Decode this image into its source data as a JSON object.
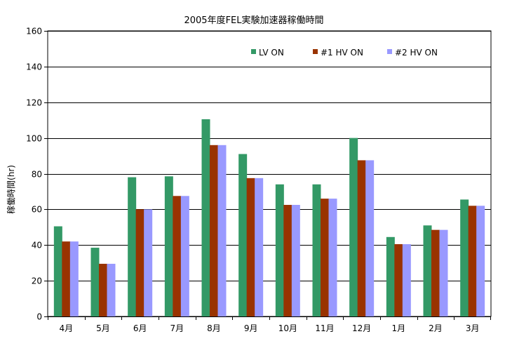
{
  "chart_data": {
    "type": "bar",
    "title": "2005年度FEL実験加速器稼働時間",
    "xlabel": "",
    "ylabel": "稼働時間(hr)",
    "ylim": [
      0,
      160
    ],
    "yticks": [
      0,
      20,
      40,
      60,
      80,
      100,
      120,
      140,
      160
    ],
    "grid": true,
    "legend_position": "top-right",
    "categories": [
      "4月",
      "5月",
      "6月",
      "7月",
      "8月",
      "9月",
      "10月",
      "11月",
      "12月",
      "1月",
      "2月",
      "3月"
    ],
    "series": [
      {
        "name": "LV ON",
        "color": "#339966",
        "values": [
          50.5,
          38.5,
          78,
          78.5,
          110.5,
          91,
          74,
          74,
          100,
          44.5,
          51,
          65.5
        ]
      },
      {
        "name": "#1  HV ON",
        "color": "#993300",
        "values": [
          42,
          29.5,
          60,
          67.5,
          96,
          77.5,
          62.5,
          66,
          87.5,
          40.5,
          48.5,
          62
        ]
      },
      {
        "name": "#2  HV ON",
        "color": "#9999FF",
        "values": [
          42,
          29.5,
          60,
          67.5,
          96,
          77.5,
          62.5,
          66,
          87.5,
          40.5,
          48.5,
          62
        ]
      }
    ]
  }
}
